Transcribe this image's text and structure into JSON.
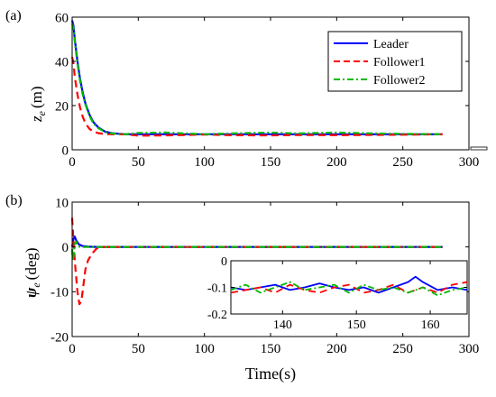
{
  "chart_data": [
    {
      "panel_label": "(a)",
      "type": "line",
      "xlim": [
        0,
        300
      ],
      "ylim": [
        0,
        60
      ],
      "xticks": [
        0,
        50,
        100,
        150,
        200,
        250,
        300
      ],
      "yticks": [
        0,
        20,
        40,
        60
      ],
      "ylabel_main": "z",
      "ylabel_sub": "e",
      "ylabel_unit": "(m)",
      "legend": {
        "placement": "top-right",
        "entries": [
          "Leader",
          "Follower1",
          "Follower2"
        ]
      },
      "series": [
        {
          "name": "Leader",
          "color": "#0000ff",
          "dash": "solid",
          "x": [
            0,
            1,
            2,
            4,
            6,
            8,
            10,
            13,
            16,
            20,
            25,
            30,
            40,
            50,
            100,
            150,
            200,
            250,
            280
          ],
          "y": [
            58.5,
            56,
            50,
            40,
            32,
            26,
            21,
            16,
            12.5,
            10,
            8.2,
            7.5,
            7,
            7,
            7,
            7,
            7,
            7,
            7
          ]
        },
        {
          "name": "Follower1",
          "color": "#ff0000",
          "dash": "dashed",
          "x": [
            0,
            1,
            2,
            4,
            6,
            8,
            10,
            13,
            16,
            20,
            25,
            30,
            40,
            50,
            70,
            100,
            120,
            150,
            170,
            200,
            220,
            250,
            280
          ],
          "y": [
            42,
            39,
            33,
            25,
            19,
            15,
            12,
            9.5,
            8.2,
            7.5,
            7.1,
            7,
            7,
            6.4,
            6.5,
            6.9,
            6.6,
            6.5,
            6.7,
            6.6,
            6.7,
            6.8,
            7
          ]
        },
        {
          "name": "Follower2",
          "color": "#00bb00",
          "dash": "dashdot",
          "x": [
            0,
            1,
            2,
            4,
            6,
            8,
            10,
            13,
            16,
            20,
            25,
            30,
            40,
            50,
            70,
            100,
            120,
            150,
            170,
            200,
            220,
            250,
            280
          ],
          "y": [
            57,
            55,
            49,
            39,
            31,
            25,
            20.5,
            15.5,
            12,
            9.7,
            8,
            7.4,
            7,
            7.6,
            7.8,
            7,
            7.4,
            7.8,
            7.4,
            7.8,
            7.5,
            7.2,
            7
          ]
        }
      ]
    },
    {
      "panel_label": "(b)",
      "type": "line",
      "xlim": [
        0,
        300
      ],
      "ylim": [
        -20,
        10
      ],
      "xticks": [
        0,
        50,
        100,
        150,
        200,
        250,
        300
      ],
      "yticks": [
        -20,
        -10,
        0,
        10
      ],
      "ylabel_main": "ψ",
      "ylabel_sub": "e",
      "ylabel_unit": "(deg)",
      "xlabel": "Time",
      "xlabel_unit": "(s)",
      "series": [
        {
          "name": "Leader",
          "color": "#0000ff",
          "dash": "solid",
          "x": [
            0,
            1,
            2,
            3,
            5,
            8,
            12,
            20,
            280
          ],
          "y": [
            0,
            1.8,
            2.3,
            1.5,
            0.6,
            0.2,
            0.05,
            0,
            0
          ]
        },
        {
          "name": "Follower1",
          "color": "#ff0000",
          "dash": "dashed",
          "x": [
            0,
            0.5,
            1.5,
            2.5,
            4,
            5.5,
            7,
            8.5,
            10,
            12,
            15,
            18,
            20,
            25,
            280
          ],
          "y": [
            6.5,
            4,
            -1,
            -5,
            -10,
            -12.8,
            -12,
            -8.5,
            -5,
            -3,
            -1.5,
            -0.5,
            -0.1,
            0,
            0
          ]
        },
        {
          "name": "Follower2",
          "color": "#00bb00",
          "dash": "dashdot",
          "x": [
            0,
            0.5,
            1,
            2,
            3,
            4,
            6,
            10,
            280
          ],
          "y": [
            -0.5,
            -3,
            -2,
            0.5,
            1.2,
            0.3,
            0,
            0,
            0
          ]
        }
      ],
      "inset": {
        "xlim": [
          133,
          165
        ],
        "ylim": [
          -0.2,
          0
        ],
        "xticks": [
          140,
          150,
          160
        ],
        "yticks": [
          -0.2,
          -0.1,
          0
        ],
        "series": [
          {
            "name": "Leader",
            "color": "#0000ff",
            "dash": "solid",
            "x": [
              133,
              135,
              137,
              139,
              141,
              143,
              145,
              147,
              149,
              151,
              153,
              155,
              157,
              158,
              159,
              161,
              163,
              165
            ],
            "y": [
              -0.1,
              -0.11,
              -0.1,
              -0.09,
              -0.11,
              -0.1,
              -0.085,
              -0.1,
              -0.11,
              -0.1,
              -0.12,
              -0.1,
              -0.08,
              -0.06,
              -0.08,
              -0.11,
              -0.1,
              -0.11
            ]
          },
          {
            "name": "Follower1",
            "color": "#ff0000",
            "dash": "dashed",
            "x": [
              133,
              135,
              137,
              139,
              141,
              143,
              145,
              147,
              149,
              151,
              153,
              155,
              157,
              159,
              161,
              163,
              165
            ],
            "y": [
              -0.12,
              -0.11,
              -0.1,
              -0.12,
              -0.09,
              -0.11,
              -0.12,
              -0.1,
              -0.09,
              -0.12,
              -0.11,
              -0.09,
              -0.12,
              -0.1,
              -0.12,
              -0.09,
              -0.08
            ]
          },
          {
            "name": "Follower2",
            "color": "#00bb00",
            "dash": "dashdot",
            "x": [
              133,
              135,
              137,
              139,
              141,
              143,
              145,
              147,
              149,
              151,
              153,
              155,
              157,
              159,
              161,
              163,
              165
            ],
            "y": [
              -0.11,
              -0.09,
              -0.12,
              -0.1,
              -0.08,
              -0.11,
              -0.1,
              -0.09,
              -0.12,
              -0.09,
              -0.11,
              -0.1,
              -0.12,
              -0.1,
              -0.13,
              -0.11,
              -0.1
            ]
          }
        ]
      }
    }
  ]
}
